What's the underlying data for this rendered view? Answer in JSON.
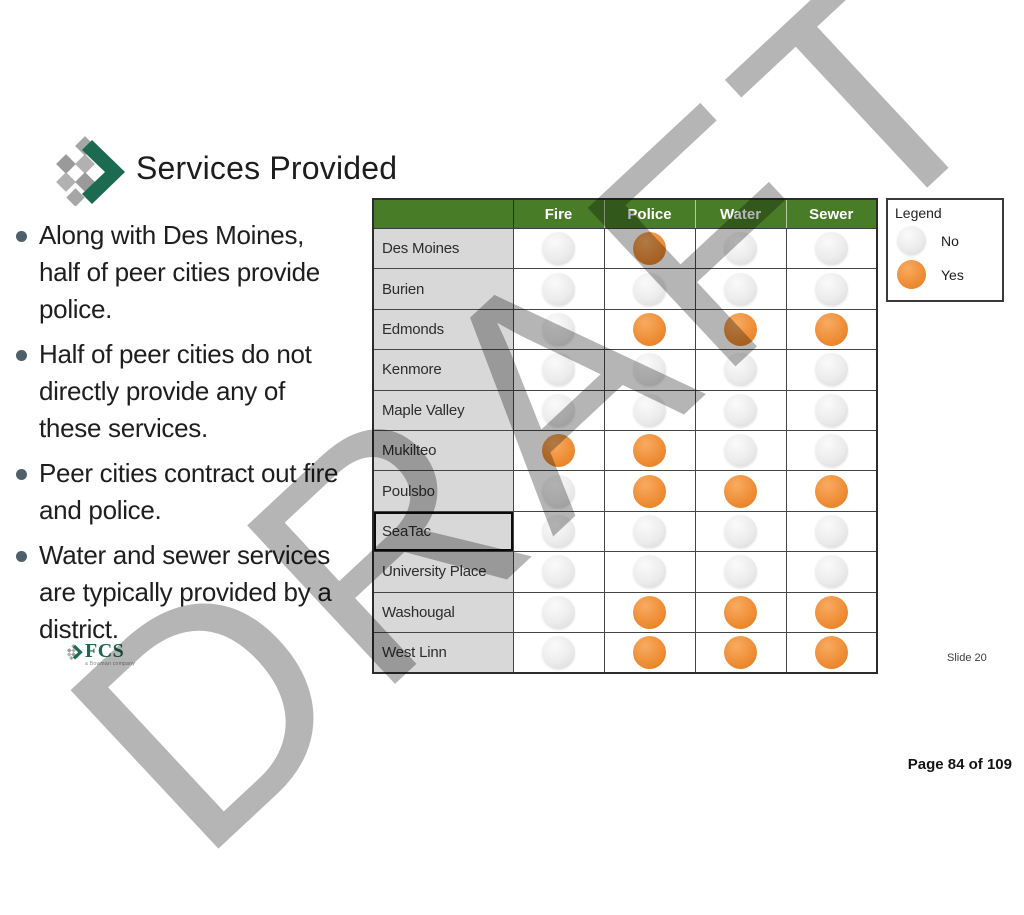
{
  "page": {
    "title": "Services Provided",
    "watermark": "DRAFT",
    "slide_label": "Slide 20",
    "page_label": "Page 84 of 109"
  },
  "footer_logo": {
    "name": "FCS",
    "tagline": "a Bowman company"
  },
  "bullets": [
    "Along with Des Moines, half of peer cities provide police.",
    "Half of peer cities do not directly provide any of these services.",
    "Peer cities contract out fire and police.",
    "Water and sewer services are typically provided by a district."
  ],
  "table": {
    "columns": [
      "Fire",
      "Police",
      "Water",
      "Sewer"
    ],
    "rows": [
      {
        "city": "Des Moines",
        "highlighted": false,
        "values": [
          "no",
          "yes",
          "no",
          "no"
        ]
      },
      {
        "city": "Burien",
        "highlighted": false,
        "values": [
          "no",
          "no",
          "no",
          "no"
        ]
      },
      {
        "city": "Edmonds",
        "highlighted": false,
        "values": [
          "no",
          "yes",
          "yes",
          "yes"
        ]
      },
      {
        "city": "Kenmore",
        "highlighted": false,
        "values": [
          "no",
          "no",
          "no",
          "no"
        ]
      },
      {
        "city": "Maple Valley",
        "highlighted": false,
        "values": [
          "no",
          "no",
          "no",
          "no"
        ]
      },
      {
        "city": "Mukilteo",
        "highlighted": false,
        "values": [
          "yes",
          "yes",
          "no",
          "no"
        ]
      },
      {
        "city": "Poulsbo",
        "highlighted": false,
        "values": [
          "no",
          "yes",
          "yes",
          "yes"
        ]
      },
      {
        "city": "SeaTac",
        "highlighted": true,
        "values": [
          "no",
          "no",
          "no",
          "no"
        ]
      },
      {
        "city": "University Place",
        "highlighted": false,
        "values": [
          "no",
          "no",
          "no",
          "no"
        ]
      },
      {
        "city": "Washougal",
        "highlighted": false,
        "values": [
          "no",
          "yes",
          "yes",
          "yes"
        ]
      },
      {
        "city": "West Linn",
        "highlighted": false,
        "values": [
          "no",
          "yes",
          "yes",
          "yes"
        ]
      }
    ]
  },
  "legend": {
    "title": "Legend",
    "items": [
      {
        "label": "No",
        "value": "no"
      },
      {
        "label": "Yes",
        "value": "yes"
      }
    ]
  },
  "colors": {
    "header_green": "#487c26",
    "yes_orange": "#ee8c34",
    "no_gray": "#e6e6e6",
    "watermark_gray": "#b5b5b5",
    "logo_green": "#1c6b50"
  }
}
